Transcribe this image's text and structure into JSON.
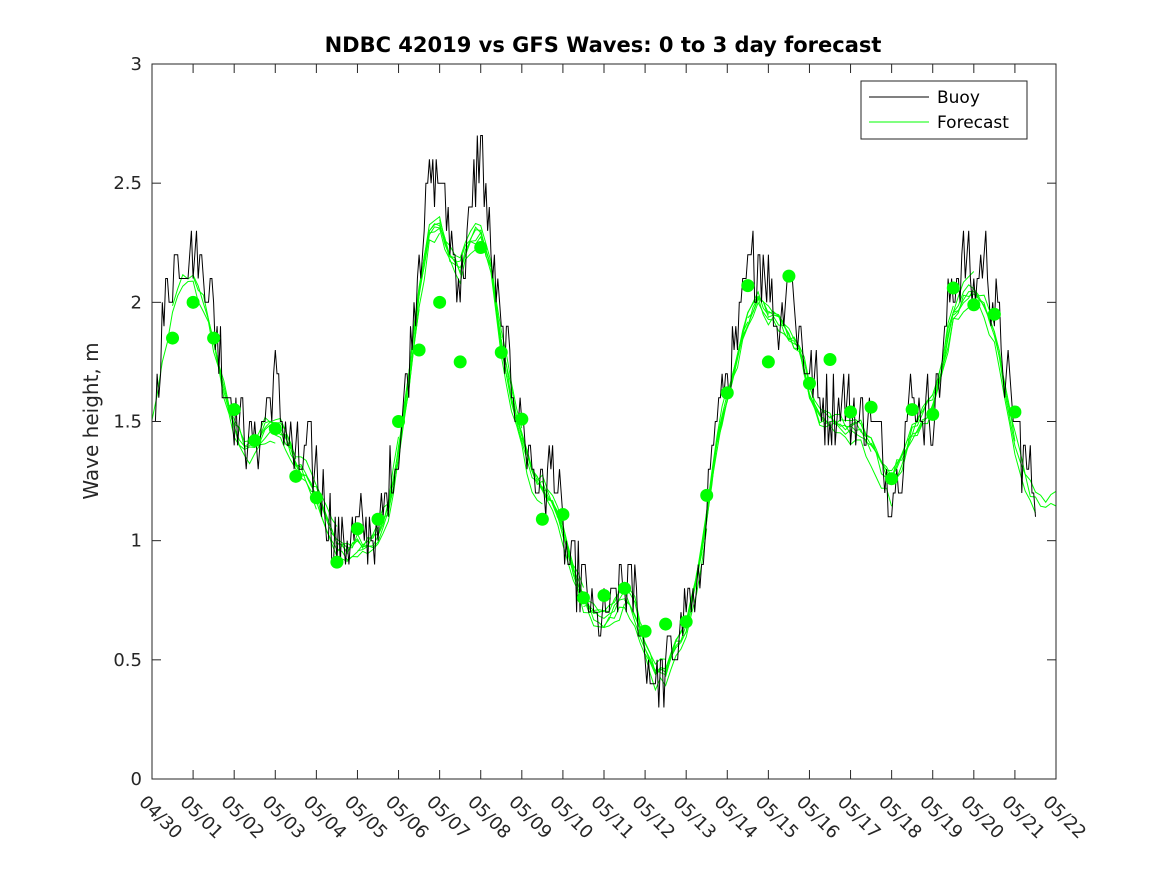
{
  "chart_data": {
    "type": "line",
    "title": "NDBC 42019 vs GFS Waves: 0 to 3 day forecast",
    "xlabel": "",
    "ylabel": "Wave height, m",
    "x_tick_labels": [
      "04/30",
      "05/01",
      "05/02",
      "05/03",
      "05/04",
      "05/05",
      "05/06",
      "05/07",
      "05/08",
      "05/09",
      "05/10",
      "05/11",
      "05/12",
      "05/13",
      "05/14",
      "05/15",
      "05/16",
      "05/17",
      "05/18",
      "05/19",
      "05/20",
      "05/21",
      "05/22"
    ],
    "y_ticks": [
      0,
      0.5,
      1,
      1.5,
      2,
      2.5,
      3
    ],
    "xlim_days": [
      0,
      22
    ],
    "ylim": [
      0,
      3
    ],
    "grid": false,
    "legend": {
      "placement": "top-right",
      "entries": [
        "Buoy",
        "Forecast"
      ]
    },
    "colors": {
      "buoy": "#000000",
      "forecast": "#00ff00"
    },
    "buoy": {
      "name": "Buoy",
      "day": [
        0,
        0.25,
        0.5,
        0.75,
        1,
        1.25,
        1.5,
        1.75,
        2,
        2.25,
        2.5,
        2.75,
        3,
        3.25,
        3.5,
        3.75,
        4,
        4.25,
        4.5,
        4.75,
        5,
        5.25,
        5.5,
        5.75,
        6,
        6.25,
        6.5,
        6.75,
        7,
        7.25,
        7.5,
        7.75,
        8,
        8.25,
        8.5,
        8.75,
        9,
        9.25,
        9.5,
        9.75,
        10,
        10.25,
        10.5,
        10.75,
        11,
        11.25,
        11.5,
        11.75,
        12,
        12.25,
        12.5,
        12.75,
        13,
        13.25,
        13.5,
        13.75,
        14,
        14.25,
        14.5,
        14.75,
        15,
        15.25,
        15.5,
        15.75,
        16,
        16.25,
        16.5,
        16.75,
        17,
        17.25,
        17.5,
        17.75,
        18,
        18.25,
        18.5,
        18.75,
        19,
        19.25,
        19.5,
        19.75,
        20,
        20.25,
        20.5,
        20.75,
        21,
        21.25,
        21.5
      ],
      "height": [
        1.45,
        1.9,
        2.15,
        2.2,
        2.25,
        2.15,
        1.95,
        1.7,
        1.55,
        1.45,
        1.4,
        1.55,
        1.7,
        1.45,
        1.35,
        1.35,
        1.3,
        1.1,
        0.98,
        1.0,
        1.05,
        1.05,
        1.0,
        1.2,
        1.4,
        1.75,
        2.2,
        2.5,
        2.55,
        2.3,
        2.1,
        2.35,
        2.7,
        2.2,
        1.85,
        1.7,
        1.5,
        1.3,
        1.2,
        1.35,
        1.05,
        0.85,
        0.8,
        0.7,
        0.65,
        0.75,
        0.85,
        0.8,
        0.5,
        0.42,
        0.45,
        0.55,
        0.75,
        0.7,
        1.2,
        1.55,
        1.7,
        1.8,
        2.1,
        2.2,
        2.1,
        1.85,
        2.2,
        1.85,
        1.7,
        1.6,
        1.55,
        1.6,
        1.55,
        1.5,
        1.55,
        1.35,
        1.2,
        1.35,
        1.6,
        1.55,
        1.55,
        1.8,
        2.1,
        2.2,
        2.05,
        2.2,
        2.0,
        1.7,
        1.5,
        1.3,
        1.22
      ]
    },
    "forecast_markers": {
      "name": "Forecast",
      "day": [
        0.5,
        1,
        1.5,
        2,
        2.5,
        3,
        3.5,
        4,
        4.5,
        5,
        5.5,
        6,
        6.5,
        7,
        7.5,
        8,
        8.5,
        9,
        9.5,
        10,
        10.5,
        11,
        11.5,
        12,
        12.5,
        13,
        13.5,
        14,
        14.5,
        15,
        15.5,
        16,
        16.5,
        17,
        17.5,
        18,
        18.5,
        19,
        19.5,
        20,
        20.5,
        21
      ],
      "height": [
        1.85,
        2.0,
        1.85,
        1.55,
        1.42,
        1.47,
        1.27,
        1.18,
        0.91,
        1.05,
        1.09,
        1.5,
        1.8,
        2.0,
        1.75,
        2.23,
        1.79,
        1.51,
        1.09,
        1.11,
        0.76,
        0.77,
        0.8,
        0.62,
        0.65,
        0.66,
        1.19,
        1.62,
        2.07,
        1.75,
        2.11,
        1.66,
        1.76,
        1.54,
        1.56,
        1.26,
        1.55,
        1.53,
        2.06,
        1.99,
        1.95,
        1.54
      ]
    }
  }
}
